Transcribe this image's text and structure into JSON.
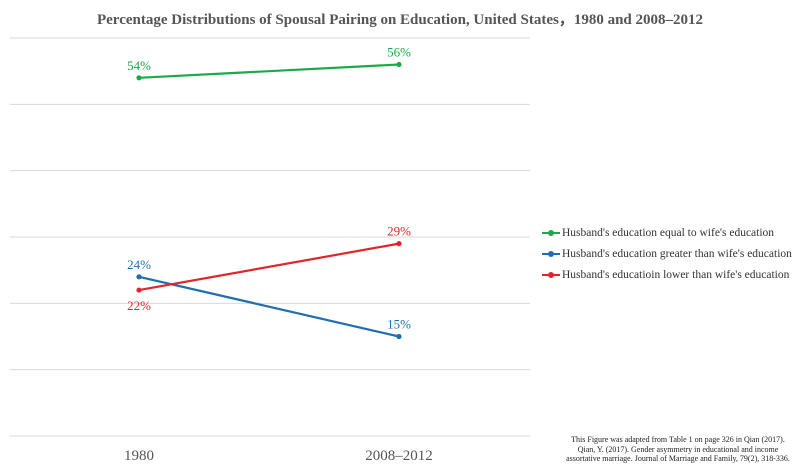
{
  "chart_data": {
    "type": "line",
    "title": "Percentage Distributions of Spousal Pairing on Education, United States，1980 and 2008–2012",
    "categories": [
      "1980",
      "2008–2012"
    ],
    "ylim": [
      0,
      60
    ],
    "grid": true,
    "legend_position": "right",
    "series": [
      {
        "name": "Husband's education equal to wife's education",
        "values": [
          54,
          56
        ],
        "labels": [
          "54%",
          "56%"
        ],
        "color": "#1aaa4a"
      },
      {
        "name": "Husband's education greater than wife's education",
        "values": [
          24,
          15
        ],
        "labels": [
          "24%",
          "15%"
        ],
        "color": "#1f6fb0"
      },
      {
        "name": "Husband's educatioin lower than wife's education",
        "values": [
          22,
          29
        ],
        "labels": [
          "22%",
          "29%"
        ],
        "color": "#e0262b"
      }
    ]
  },
  "note": {
    "line1": "This Figure was adapted from Table 1 on page 326 in Qian (2017).",
    "line2": "Qian, Y. (2017). Gender asymmetry in educational and income",
    "line3": "assortative marriage. Journal of Marriage and Family, 79(2), 318-336."
  }
}
